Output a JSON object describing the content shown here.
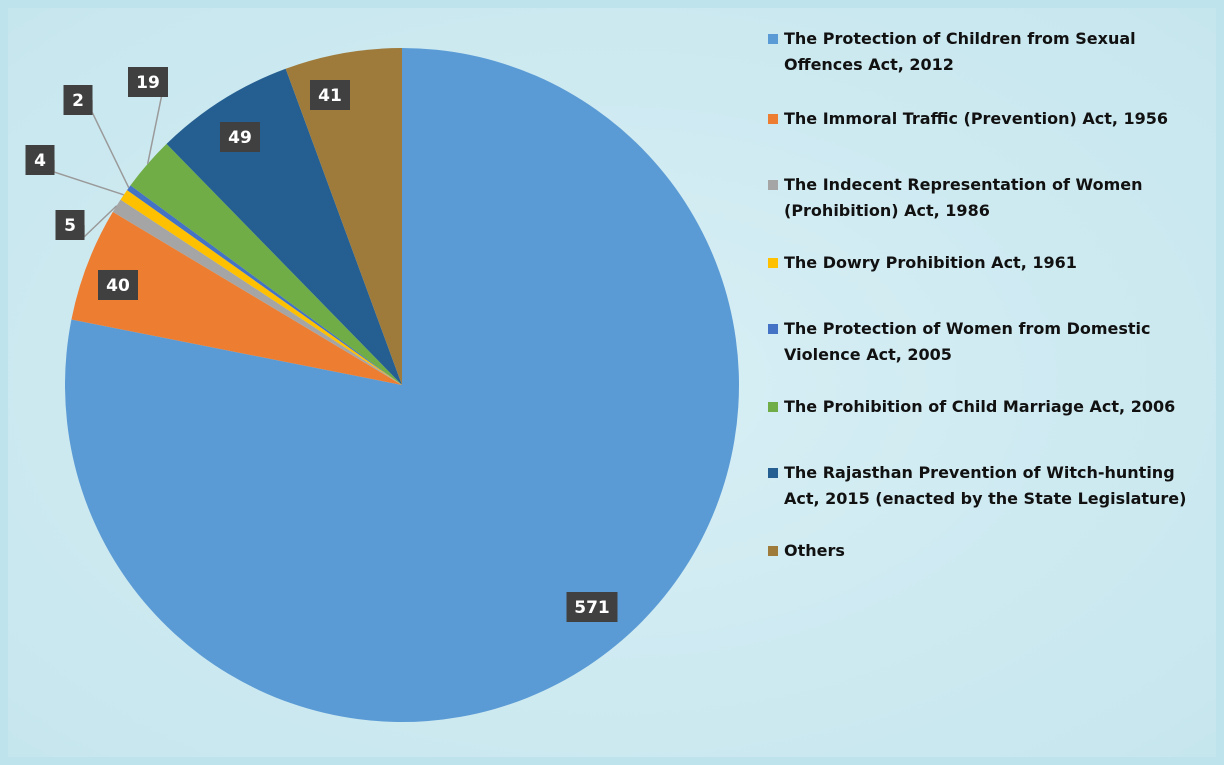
{
  "chart_data": {
    "type": "pie",
    "categories": [
      "The Protection of Children from Sexual Offences Act, 2012",
      "The Immoral Traffic (Prevention) Act, 1956",
      "The Indecent Representation  of Women (Prohibition) Act, 1986",
      "The Dowry Prohibition Act, 1961",
      "The Protection of Women from Domestic Violence Act, 2005",
      "The Prohibition of Child Marriage Act, 2006",
      "The Rajasthan Prevention of Witch-hunting Act, 2015 (enacted by the State Legislature)",
      "Others"
    ],
    "values": [
      571,
      40,
      5,
      4,
      2,
      19,
      49,
      41
    ],
    "colors": [
      "#5b9bd5",
      "#ed7d31",
      "#a5a5a5",
      "#ffc000",
      "#4472c4",
      "#70ad47",
      "#255e91",
      "#9e7a3b"
    ],
    "legend": "right"
  }
}
